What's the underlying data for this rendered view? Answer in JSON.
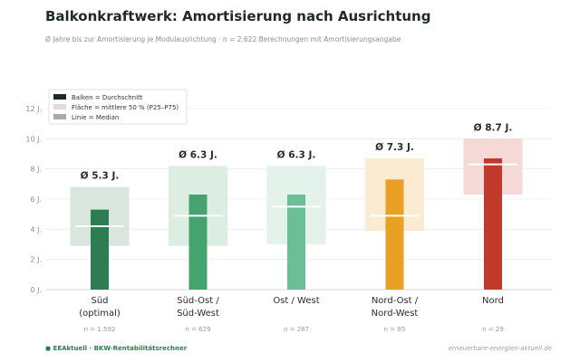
{
  "chart_data": {
    "type": "bar",
    "title": "Balkonkraftwerk: Amortisierung nach Ausrichtung",
    "subtitle": "Ø Jahre bis zur Amortisierung je Modulausrichtung  ·  n = 2.622 Berechnungen mit Amortisierungsangabe",
    "ylim": [
      0,
      12
    ],
    "yticks": [
      0,
      2,
      4,
      6,
      8,
      10,
      12
    ],
    "ytick_suffix": " J.",
    "grid": true,
    "legend_position": "top-left",
    "legend": [
      {
        "label": "Balken = Durchschnitt",
        "color": "#1e2a24"
      },
      {
        "label": "Fläche = mittlere 50 % (P25–P75)",
        "color": "#dcdcdc"
      },
      {
        "label": "Linie = Median",
        "color": "#a9a9a9"
      }
    ],
    "categories": [
      {
        "line1": "Süd",
        "line2": "(optimal)",
        "n": "n = 1.592",
        "mean": 5.3,
        "label": "Ø 5.3 J.",
        "p25": 2.9,
        "p75": 6.8,
        "median": 4.2,
        "color": "#2e7d52",
        "band": "#d9e6de"
      },
      {
        "line1": "Süd-Ost /",
        "line2": "Süd-West",
        "n": "n = 629",
        "mean": 6.3,
        "label": "Ø 6.3 J.",
        "p25": 2.9,
        "p75": 8.2,
        "median": 4.9,
        "color": "#45a36e",
        "band": "#dcede2"
      },
      {
        "line1": "Ost / West",
        "line2": "",
        "n": "n = 287",
        "mean": 6.3,
        "label": "Ø 6.3 J.",
        "p25": 3.0,
        "p75": 8.2,
        "median": 5.5,
        "color": "#6bbf96",
        "band": "#e3f2ea"
      },
      {
        "line1": "Nord-Ost /",
        "line2": "Nord-West",
        "n": "n = 85",
        "mean": 7.3,
        "label": "Ø 7.3 J.",
        "p25": 3.9,
        "p75": 8.7,
        "median": 4.9,
        "color": "#e9a125",
        "band": "#fbebd0"
      },
      {
        "line1": "Nord",
        "line2": "",
        "n": "n = 29",
        "mean": 8.7,
        "label": "Ø 8.7 J.",
        "p25": 6.3,
        "p75": 10.0,
        "median": 8.3,
        "color": "#c0392b",
        "band": "#f5d9d6"
      }
    ]
  },
  "footer": {
    "left": "● EEAktuell · BKW-Rentabilitätsrechner",
    "right": "erneuerbare-energien-aktuell.de"
  }
}
